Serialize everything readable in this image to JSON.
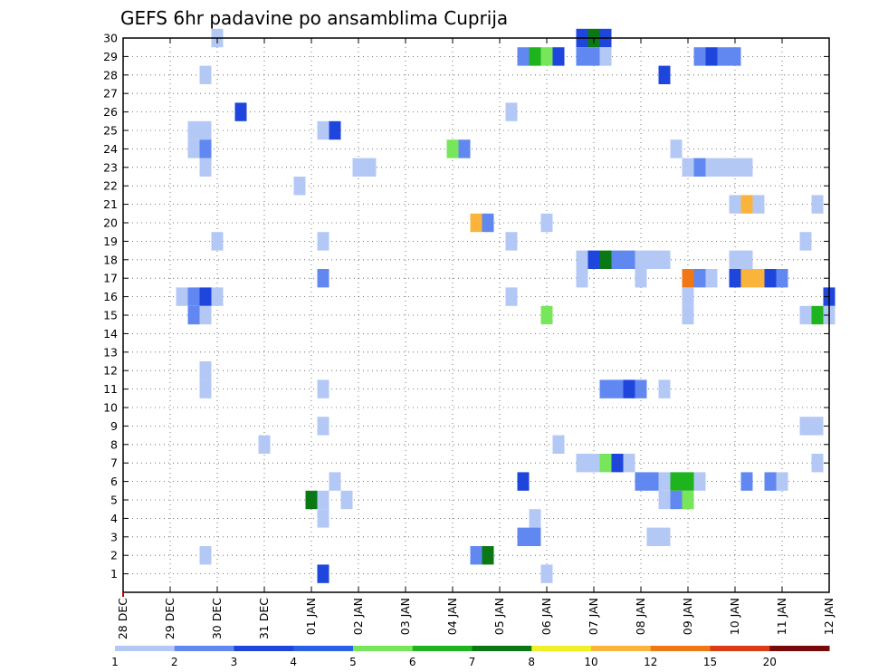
{
  "chart_data": {
    "type": "heatmap",
    "title": "GEFS 6hr padavine po ansamblima Cuprija",
    "x_tick_labels": [
      "28 DEC",
      "29 DEC",
      "30 DEC",
      "31 DEC",
      "01 JAN",
      "02 JAN",
      "03 JAN",
      "04 JAN",
      "05 JAN",
      "06 JAN",
      "07 JAN",
      "08 JAN",
      "09 JAN",
      "10 JAN",
      "11 JAN",
      "12 JAN"
    ],
    "x_unit": "6-hour steps from 28 DEC 00Z",
    "xlim": [
      0,
      60
    ],
    "ylim": [
      0,
      30
    ],
    "y_ticks": [
      1,
      2,
      3,
      4,
      5,
      6,
      7,
      8,
      9,
      10,
      11,
      12,
      13,
      14,
      15,
      16,
      17,
      18,
      19,
      20,
      21,
      22,
      23,
      24,
      25,
      26,
      27,
      28,
      29,
      30
    ],
    "grid": true,
    "colorbar": {
      "labels": [
        "1",
        "2",
        "3",
        "4",
        "5",
        "6",
        "7",
        "8",
        "10",
        "12",
        "15",
        "20"
      ],
      "colors": [
        "#b4c8f5",
        "#6088f0",
        "#1e46dc",
        "#2860e6",
        "#78e65a",
        "#1eb41e",
        "#0a7814",
        "#f0f028",
        "#fab43c",
        "#f07814",
        "#dc3c14",
        "#780a0a"
      ]
    },
    "cells": [
      {
        "x": 8,
        "y": 30,
        "c": 0
      },
      {
        "x": 39,
        "y": 30,
        "c": 2
      },
      {
        "x": 40,
        "y": 30,
        "c": 6
      },
      {
        "x": 41,
        "y": 30,
        "c": 2
      },
      {
        "x": 34,
        "y": 29,
        "c": 1
      },
      {
        "x": 35,
        "y": 29,
        "c": 5
      },
      {
        "x": 36,
        "y": 29,
        "c": 4
      },
      {
        "x": 37,
        "y": 29,
        "c": 2
      },
      {
        "x": 39,
        "y": 29,
        "c": 1
      },
      {
        "x": 40,
        "y": 29,
        "c": 1
      },
      {
        "x": 41,
        "y": 29,
        "c": 0
      },
      {
        "x": 49,
        "y": 29,
        "c": 1
      },
      {
        "x": 50,
        "y": 29,
        "c": 2
      },
      {
        "x": 51,
        "y": 29,
        "c": 1
      },
      {
        "x": 52,
        "y": 29,
        "c": 1
      },
      {
        "x": 7,
        "y": 28,
        "c": 0
      },
      {
        "x": 46,
        "y": 28,
        "c": 2
      },
      {
        "x": 10,
        "y": 26,
        "c": 2
      },
      {
        "x": 33,
        "y": 26,
        "c": 0
      },
      {
        "x": 6,
        "y": 25,
        "c": 0
      },
      {
        "x": 7,
        "y": 25,
        "c": 0
      },
      {
        "x": 17,
        "y": 25,
        "c": 0
      },
      {
        "x": 18,
        "y": 25,
        "c": 2
      },
      {
        "x": 6,
        "y": 24,
        "c": 0
      },
      {
        "x": 7,
        "y": 24,
        "c": 1
      },
      {
        "x": 28,
        "y": 24,
        "c": 4
      },
      {
        "x": 29,
        "y": 24,
        "c": 1
      },
      {
        "x": 47,
        "y": 24,
        "c": 0
      },
      {
        "x": 7,
        "y": 23,
        "c": 0
      },
      {
        "x": 20,
        "y": 23,
        "c": 0
      },
      {
        "x": 21,
        "y": 23,
        "c": 0
      },
      {
        "x": 48,
        "y": 23,
        "c": 0
      },
      {
        "x": 49,
        "y": 23,
        "c": 1
      },
      {
        "x": 50,
        "y": 23,
        "c": 0
      },
      {
        "x": 51,
        "y": 23,
        "c": 0
      },
      {
        "x": 52,
        "y": 23,
        "c": 0
      },
      {
        "x": 53,
        "y": 23,
        "c": 0
      },
      {
        "x": 15,
        "y": 22,
        "c": 0
      },
      {
        "x": 52,
        "y": 21,
        "c": 0
      },
      {
        "x": 53,
        "y": 21,
        "c": 8
      },
      {
        "x": 54,
        "y": 21,
        "c": 0
      },
      {
        "x": 59,
        "y": 21,
        "c": 0
      },
      {
        "x": 30,
        "y": 20,
        "c": 8
      },
      {
        "x": 31,
        "y": 20,
        "c": 1
      },
      {
        "x": 36,
        "y": 20,
        "c": 0
      },
      {
        "x": 8,
        "y": 19,
        "c": 0
      },
      {
        "x": 17,
        "y": 19,
        "c": 0
      },
      {
        "x": 33,
        "y": 19,
        "c": 0
      },
      {
        "x": 58,
        "y": 19,
        "c": 0
      },
      {
        "x": 39,
        "y": 18,
        "c": 0
      },
      {
        "x": 40,
        "y": 18,
        "c": 2
      },
      {
        "x": 41,
        "y": 18,
        "c": 6
      },
      {
        "x": 42,
        "y": 18,
        "c": 1
      },
      {
        "x": 43,
        "y": 18,
        "c": 1
      },
      {
        "x": 44,
        "y": 18,
        "c": 0
      },
      {
        "x": 45,
        "y": 18,
        "c": 0
      },
      {
        "x": 46,
        "y": 18,
        "c": 0
      },
      {
        "x": 52,
        "y": 18,
        "c": 0
      },
      {
        "x": 53,
        "y": 18,
        "c": 0
      },
      {
        "x": 17,
        "y": 17,
        "c": 1
      },
      {
        "x": 39,
        "y": 17,
        "c": 0
      },
      {
        "x": 44,
        "y": 17,
        "c": 0
      },
      {
        "x": 48,
        "y": 17,
        "c": 9
      },
      {
        "x": 49,
        "y": 17,
        "c": 1
      },
      {
        "x": 50,
        "y": 17,
        "c": 0
      },
      {
        "x": 52,
        "y": 17,
        "c": 2
      },
      {
        "x": 53,
        "y": 17,
        "c": 8
      },
      {
        "x": 54,
        "y": 17,
        "c": 8
      },
      {
        "x": 55,
        "y": 17,
        "c": 2
      },
      {
        "x": 56,
        "y": 17,
        "c": 1
      },
      {
        "x": 5,
        "y": 16,
        "c": 0
      },
      {
        "x": 6,
        "y": 16,
        "c": 1
      },
      {
        "x": 7,
        "y": 16,
        "c": 2
      },
      {
        "x": 8,
        "y": 16,
        "c": 0
      },
      {
        "x": 33,
        "y": 16,
        "c": 0
      },
      {
        "x": 48,
        "y": 16,
        "c": 0
      },
      {
        "x": 60,
        "y": 16,
        "c": 2
      },
      {
        "x": 6,
        "y": 15,
        "c": 1
      },
      {
        "x": 7,
        "y": 15,
        "c": 0
      },
      {
        "x": 36,
        "y": 15,
        "c": 4
      },
      {
        "x": 48,
        "y": 15,
        "c": 0
      },
      {
        "x": 58,
        "y": 15,
        "c": 0
      },
      {
        "x": 59,
        "y": 15,
        "c": 5
      },
      {
        "x": 60,
        "y": 15,
        "c": 0
      },
      {
        "x": 7,
        "y": 12,
        "c": 0
      },
      {
        "x": 7,
        "y": 11,
        "c": 0
      },
      {
        "x": 17,
        "y": 11,
        "c": 0
      },
      {
        "x": 41,
        "y": 11,
        "c": 1
      },
      {
        "x": 42,
        "y": 11,
        "c": 1
      },
      {
        "x": 43,
        "y": 11,
        "c": 2
      },
      {
        "x": 44,
        "y": 11,
        "c": 1
      },
      {
        "x": 46,
        "y": 11,
        "c": 0
      },
      {
        "x": 17,
        "y": 9,
        "c": 0
      },
      {
        "x": 58,
        "y": 9,
        "c": 0
      },
      {
        "x": 59,
        "y": 9,
        "c": 0
      },
      {
        "x": 12,
        "y": 8,
        "c": 0
      },
      {
        "x": 37,
        "y": 8,
        "c": 0
      },
      {
        "x": 39,
        "y": 7,
        "c": 0
      },
      {
        "x": 40,
        "y": 7,
        "c": 0
      },
      {
        "x": 41,
        "y": 7,
        "c": 4
      },
      {
        "x": 42,
        "y": 7,
        "c": 2
      },
      {
        "x": 43,
        "y": 7,
        "c": 0
      },
      {
        "x": 59,
        "y": 7,
        "c": 0
      },
      {
        "x": 18,
        "y": 6,
        "c": 0
      },
      {
        "x": 34,
        "y": 6,
        "c": 2
      },
      {
        "x": 44,
        "y": 6,
        "c": 1
      },
      {
        "x": 45,
        "y": 6,
        "c": 1
      },
      {
        "x": 46,
        "y": 6,
        "c": 0
      },
      {
        "x": 47,
        "y": 6,
        "c": 5
      },
      {
        "x": 48,
        "y": 6,
        "c": 5
      },
      {
        "x": 49,
        "y": 6,
        "c": 0
      },
      {
        "x": 53,
        "y": 6,
        "c": 1
      },
      {
        "x": 55,
        "y": 6,
        "c": 1
      },
      {
        "x": 56,
        "y": 6,
        "c": 0
      },
      {
        "x": 16,
        "y": 5,
        "c": 6
      },
      {
        "x": 17,
        "y": 5,
        "c": 0
      },
      {
        "x": 19,
        "y": 5,
        "c": 0
      },
      {
        "x": 46,
        "y": 5,
        "c": 0
      },
      {
        "x": 47,
        "y": 5,
        "c": 1
      },
      {
        "x": 48,
        "y": 5,
        "c": 4
      },
      {
        "x": 17,
        "y": 4,
        "c": 0
      },
      {
        "x": 35,
        "y": 4,
        "c": 0
      },
      {
        "x": 34,
        "y": 3,
        "c": 1
      },
      {
        "x": 35,
        "y": 3,
        "c": 1
      },
      {
        "x": 45,
        "y": 3,
        "c": 0
      },
      {
        "x": 46,
        "y": 3,
        "c": 0
      },
      {
        "x": 7,
        "y": 2,
        "c": 0
      },
      {
        "x": 30,
        "y": 2,
        "c": 1
      },
      {
        "x": 31,
        "y": 2,
        "c": 6
      },
      {
        "x": 17,
        "y": 1,
        "c": 2
      },
      {
        "x": 36,
        "y": 1,
        "c": 0
      }
    ]
  }
}
